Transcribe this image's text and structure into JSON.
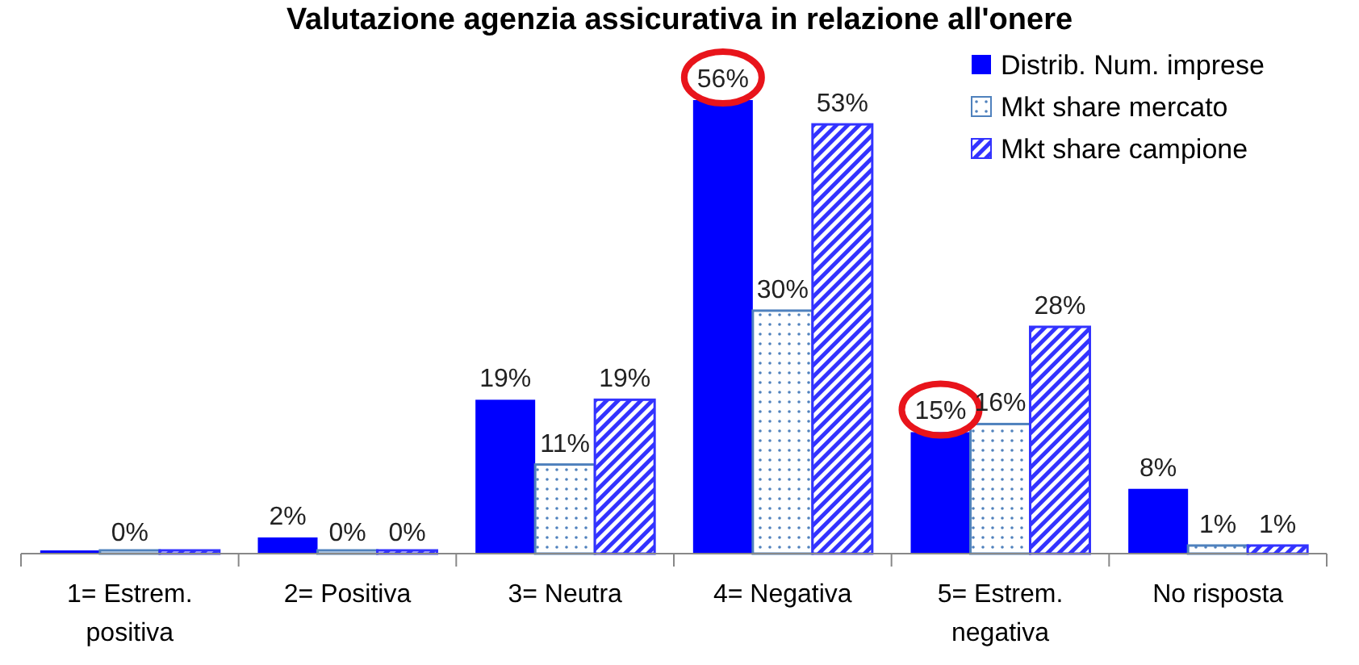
{
  "chart_data": {
    "type": "bar",
    "title": "Valutazione agenzia assicurativa in relazione all'onere",
    "categories": [
      "1= Estrem. positiva",
      "2= Positiva",
      "3= Neutra",
      "4= Negativa",
      "5= Estrem. negativa",
      "No risposta"
    ],
    "series": [
      {
        "name": "Distrib. Num. imprese",
        "color": "#0000ff",
        "values": [
          0,
          2,
          19,
          56,
          15,
          8
        ],
        "value_labels": [
          null,
          "2%",
          "19%",
          "56%",
          "15%",
          "8%"
        ]
      },
      {
        "name": "Mkt share mercato",
        "color": "#4f81bd",
        "values": [
          0,
          0,
          11,
          30,
          16,
          1
        ],
        "value_labels": [
          "0%",
          "0%",
          "11%",
          "30%",
          "16%",
          "1%"
        ]
      },
      {
        "name": "Mkt share campione",
        "color": "#3333ff",
        "values": [
          0,
          0,
          19,
          53,
          28,
          1
        ],
        "value_labels": [
          null,
          "0%",
          "19%",
          "53%",
          "28%",
          "1%"
        ]
      }
    ],
    "legend": "top right"
  }
}
